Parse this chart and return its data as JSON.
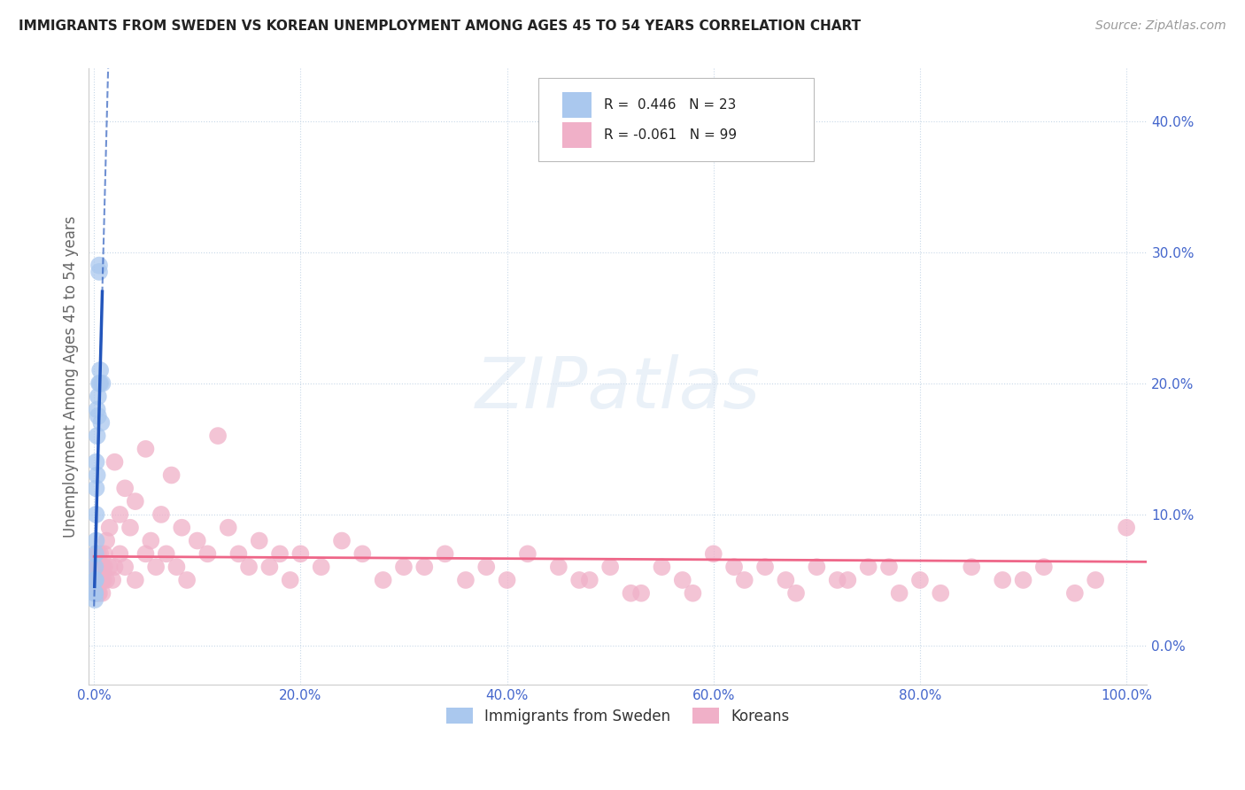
{
  "title": "IMMIGRANTS FROM SWEDEN VS KOREAN UNEMPLOYMENT AMONG AGES 45 TO 54 YEARS CORRELATION CHART",
  "source": "Source: ZipAtlas.com",
  "ylabel": "Unemployment Among Ages 45 to 54 years",
  "xlim": [
    -0.005,
    1.02
  ],
  "ylim": [
    -0.03,
    0.44
  ],
  "xtick_vals": [
    0.0,
    0.2,
    0.4,
    0.6,
    0.8,
    1.0
  ],
  "ytick_vals": [
    0.0,
    0.1,
    0.2,
    0.3,
    0.4
  ],
  "sweden_R": "0.446",
  "sweden_N": "23",
  "korean_R": "-0.061",
  "korean_N": "99",
  "blue_scatter_color": "#aac8ee",
  "pink_scatter_color": "#f0b0c8",
  "blue_line_color": "#2255bb",
  "pink_line_color": "#ee6688",
  "tick_color": "#4466cc",
  "legend_label_sweden": "Immigrants from Sweden",
  "legend_label_korean": "Koreans",
  "sweden_x": [
    0.0008,
    0.0008,
    0.001,
    0.001,
    0.001,
    0.0015,
    0.0015,
    0.002,
    0.002,
    0.002,
    0.002,
    0.003,
    0.003,
    0.003,
    0.004,
    0.004,
    0.005,
    0.005,
    0.005,
    0.006,
    0.006,
    0.007,
    0.008
  ],
  "sweden_y": [
    0.035,
    0.04,
    0.05,
    0.06,
    0.04,
    0.05,
    0.07,
    0.08,
    0.1,
    0.12,
    0.14,
    0.13,
    0.16,
    0.18,
    0.175,
    0.19,
    0.2,
    0.285,
    0.29,
    0.2,
    0.21,
    0.17,
    0.2
  ],
  "korean_x": [
    0.001,
    0.001,
    0.001,
    0.002,
    0.002,
    0.002,
    0.003,
    0.003,
    0.004,
    0.004,
    0.004,
    0.005,
    0.005,
    0.005,
    0.006,
    0.006,
    0.007,
    0.007,
    0.008,
    0.008,
    0.009,
    0.01,
    0.01,
    0.012,
    0.012,
    0.015,
    0.015,
    0.018,
    0.02,
    0.02,
    0.025,
    0.025,
    0.03,
    0.03,
    0.035,
    0.04,
    0.04,
    0.05,
    0.05,
    0.055,
    0.06,
    0.065,
    0.07,
    0.075,
    0.08,
    0.085,
    0.09,
    0.1,
    0.11,
    0.12,
    0.13,
    0.14,
    0.15,
    0.16,
    0.17,
    0.18,
    0.19,
    0.2,
    0.22,
    0.24,
    0.26,
    0.28,
    0.3,
    0.32,
    0.34,
    0.36,
    0.38,
    0.4,
    0.42,
    0.45,
    0.48,
    0.5,
    0.52,
    0.55,
    0.58,
    0.6,
    0.63,
    0.65,
    0.68,
    0.7,
    0.72,
    0.75,
    0.78,
    0.8,
    0.82,
    0.85,
    0.88,
    0.9,
    0.92,
    0.95,
    0.97,
    1.0,
    0.47,
    0.53,
    0.57,
    0.62,
    0.67,
    0.73,
    0.77
  ],
  "korean_y": [
    0.04,
    0.05,
    0.06,
    0.04,
    0.06,
    0.07,
    0.05,
    0.06,
    0.04,
    0.05,
    0.07,
    0.04,
    0.05,
    0.06,
    0.05,
    0.07,
    0.05,
    0.06,
    0.04,
    0.06,
    0.05,
    0.06,
    0.07,
    0.05,
    0.08,
    0.06,
    0.09,
    0.05,
    0.06,
    0.14,
    0.07,
    0.1,
    0.06,
    0.12,
    0.09,
    0.05,
    0.11,
    0.07,
    0.15,
    0.08,
    0.06,
    0.1,
    0.07,
    0.13,
    0.06,
    0.09,
    0.05,
    0.08,
    0.07,
    0.16,
    0.09,
    0.07,
    0.06,
    0.08,
    0.06,
    0.07,
    0.05,
    0.07,
    0.06,
    0.08,
    0.07,
    0.05,
    0.06,
    0.06,
    0.07,
    0.05,
    0.06,
    0.05,
    0.07,
    0.06,
    0.05,
    0.06,
    0.04,
    0.06,
    0.04,
    0.07,
    0.05,
    0.06,
    0.04,
    0.06,
    0.05,
    0.06,
    0.04,
    0.05,
    0.04,
    0.06,
    0.05,
    0.05,
    0.06,
    0.04,
    0.05,
    0.09,
    0.05,
    0.04,
    0.05,
    0.06,
    0.05,
    0.05,
    0.06
  ]
}
